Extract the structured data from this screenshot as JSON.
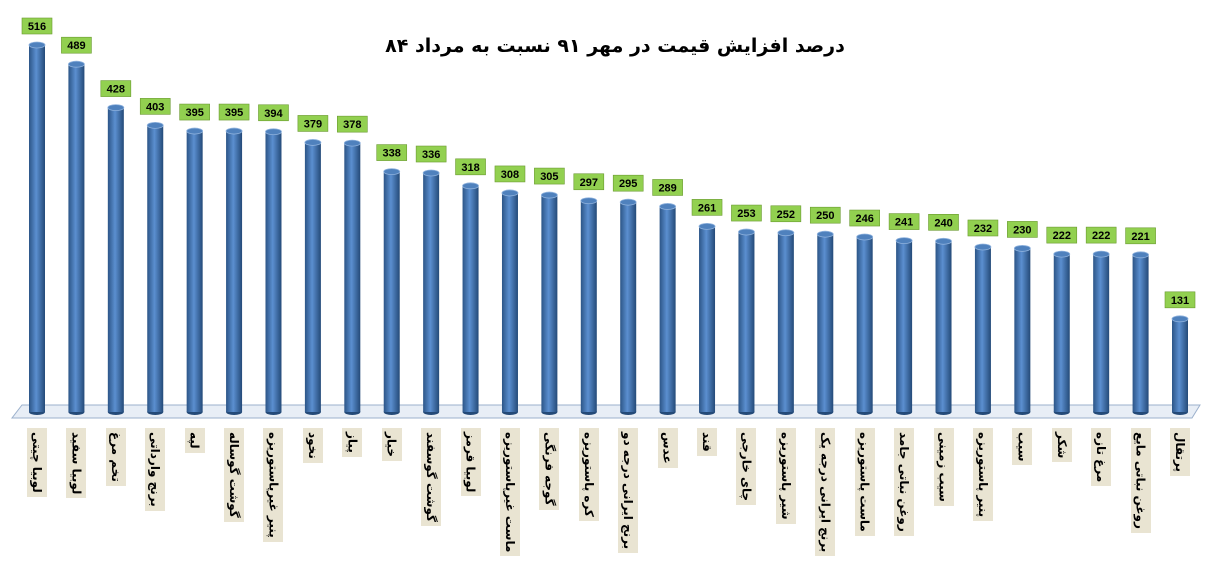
{
  "chart_data": {
    "type": "bar",
    "title": "درصد افزایش قیمت در مهر ۹۱ نسبت به مرداد ۸۴",
    "categories": [
      "لوبیا چیتی",
      "لوبیا سفید",
      "تخم مرغ",
      "برنج وارداتی",
      "لپه",
      "گوشت گوساله",
      "پنیر غیرپاستوریزه",
      "نخود",
      "پیاز",
      "خیار",
      "گوشت گوسفند",
      "لوبیا قرمز",
      "ماست غیرپاستوریزه",
      "گوجه فرنگی",
      "کره پاستوریزه",
      "برنج ایرانی درجه دو",
      "عدس",
      "قند",
      "چای خارجی",
      "شیر پاستوریزه",
      "برنج ایرانی درجه یک",
      "ماست پاستوریزه",
      "روغن نباتی جامد",
      "سیب زمینی",
      "پنیر پاستوریزه",
      "سیب",
      "شکر",
      "مرغ تازه",
      "روغن نباتی مایع",
      "پرتقال"
    ],
    "values": [
      516,
      489,
      428,
      403,
      395,
      395,
      394,
      379,
      378,
      338,
      336,
      318,
      308,
      305,
      297,
      295,
      289,
      261,
      253,
      252,
      250,
      246,
      241,
      240,
      232,
      230,
      222,
      222,
      221,
      131
    ],
    "color": "#4f81bd",
    "label_color": "#92d050"
  }
}
